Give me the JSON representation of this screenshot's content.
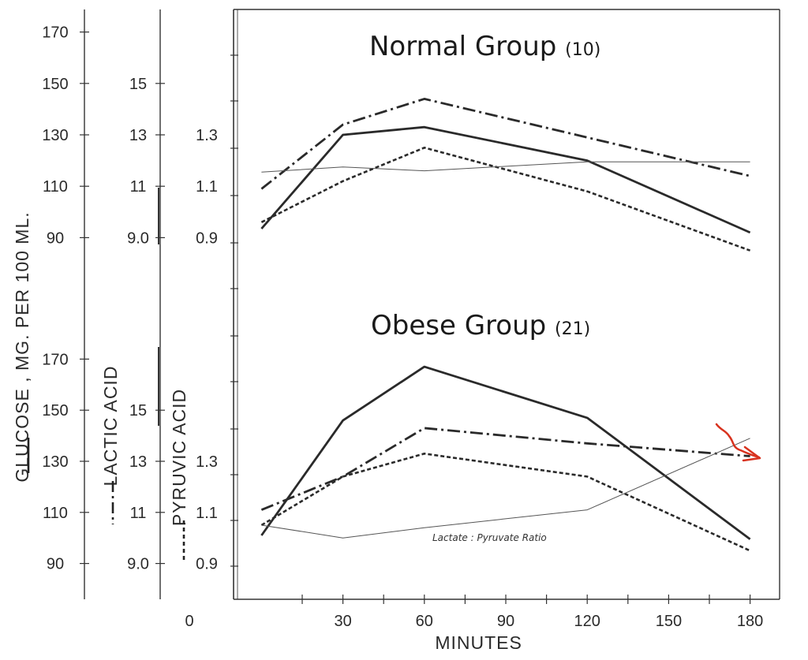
{
  "chart_data": {
    "type": "line",
    "x_axis": {
      "label": "MINUTES",
      "ticks": [
        0,
        30,
        60,
        90,
        120,
        150,
        180
      ],
      "range": [
        -10,
        190
      ]
    },
    "y_axes": {
      "glucose": {
        "label": "GLUCOSE , MG. PER 100 ML.",
        "ticks": [
          "90",
          "110",
          "130",
          "150",
          "170"
        ],
        "range": [
          80,
          180
        ]
      },
      "lactic": {
        "label": "LACTIC ACID",
        "ticks": [
          "9.0",
          "11",
          "13",
          "15"
        ],
        "range": [
          8,
          18
        ]
      },
      "pyruvic": {
        "label": "PYRUVIC ACID",
        "ticks": [
          "0.9",
          "1.1",
          "1.3"
        ],
        "range": [
          0.8,
          1.8
        ]
      }
    },
    "panels": [
      {
        "title": "Normal Group",
        "count": "(10)",
        "series": [
          {
            "key": "glucose",
            "axis": "glucose",
            "style": "solid",
            "x": [
              0,
              30,
              60,
              120,
              180
            ],
            "y": [
              93.5,
              130,
              133,
              120,
              92
            ]
          },
          {
            "key": "lactic",
            "axis": "lactic",
            "style": "dashdot",
            "x": [
              0,
              30,
              60,
              120,
              180
            ],
            "y": [
              10.9,
              13.4,
              14.4,
              12.9,
              11.4
            ]
          },
          {
            "key": "pyruvic",
            "axis": "pyruvic",
            "style": "dashed",
            "x": [
              0,
              30,
              60,
              120,
              180
            ],
            "y": [
              0.96,
              1.12,
              1.25,
              1.08,
              0.85
            ]
          },
          {
            "key": "ratio",
            "axis": "glucose",
            "style": "thin",
            "x": [
              0,
              30,
              60,
              120,
              180
            ],
            "y": [
              115.5,
              117.5,
              116,
              119.5,
              119.5
            ]
          }
        ]
      },
      {
        "title": "Obese Group",
        "count": "(21)",
        "annotation": "Lactate : Pyruvate Ratio",
        "series": [
          {
            "key": "glucose",
            "axis": "glucose",
            "style": "solid",
            "x": [
              0,
              30,
              60,
              120,
              180
            ],
            "y": [
              101,
              146,
              167,
              147,
              99.5
            ]
          },
          {
            "key": "lactic",
            "axis": "lactic",
            "style": "dashdot",
            "x": [
              0,
              30,
              60,
              120,
              180
            ],
            "y": [
              11.1,
              12.4,
              14.3,
              13.7,
              13.2
            ]
          },
          {
            "key": "pyruvic",
            "axis": "pyruvic",
            "style": "dashed",
            "x": [
              0,
              30,
              60,
              120,
              180
            ],
            "y": [
              1.05,
              1.24,
              1.33,
              1.24,
              0.95
            ]
          },
          {
            "key": "ratio",
            "axis": "glucose",
            "style": "thin",
            "x": [
              0,
              30,
              60,
              120,
              180
            ],
            "y": [
              105,
              100,
              104,
              111,
              139
            ]
          }
        ]
      }
    ]
  }
}
